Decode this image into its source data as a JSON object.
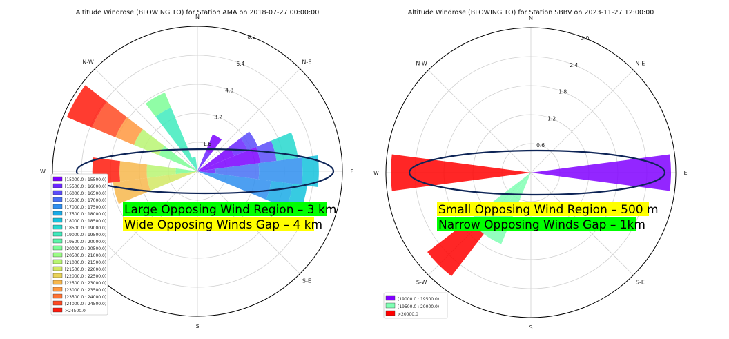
{
  "chart_data": [
    {
      "type": "windrose",
      "title": "Altitude Windrose (BLOWING TO) for Station AMA on 2018-07-27 00:00:00",
      "direction_labels": [
        "N",
        "N-E",
        "E",
        "S-E",
        "S",
        "S-W",
        "W",
        "N-W"
      ],
      "rmax": 8.0,
      "radial_ticks": [
        "1.6",
        "3.2",
        "4.8",
        "6.4",
        "8.0"
      ],
      "radial_tick_values": [
        1.6,
        3.2,
        4.8,
        6.4,
        8.0
      ],
      "legend_entries": [
        {
          "label": "[15000.0 : 15500.0)",
          "color": "#7a00ff"
        },
        {
          "label": "[15500.0 : 16000.0)",
          "color": "#6a26ff"
        },
        {
          "label": "[16000.0 : 16500.0)",
          "color": "#5a4cfa"
        },
        {
          "label": "[16500.0 : 17000.0)",
          "color": "#4670f5"
        },
        {
          "label": "[17000.0 : 17500.0)",
          "color": "#2e8eef"
        },
        {
          "label": "[17500.0 : 18000.0)",
          "color": "#1aaae6"
        },
        {
          "label": "[18000.0 : 18500.0)",
          "color": "#14c2dc"
        },
        {
          "label": "[18500.0 : 19000.0)",
          "color": "#26d8ce"
        },
        {
          "label": "[19000.0 : 19500.0)",
          "color": "#40ebbd"
        },
        {
          "label": "[19500.0 : 20000.0)",
          "color": "#5cf6ab"
        },
        {
          "label": "[20000.0 : 20500.0)",
          "color": "#7cfd97"
        },
        {
          "label": "[20500.0 : 21000.0)",
          "color": "#9afc84"
        },
        {
          "label": "[21000.0 : 21500.0)",
          "color": "#b8f572"
        },
        {
          "label": "[21500.0 : 22000.0)",
          "color": "#d2e764"
        },
        {
          "label": "[22000.0 : 22500.0)",
          "color": "#e8d258"
        },
        {
          "label": "[22500.0 : 23000.0)",
          "color": "#f7b74c"
        },
        {
          "label": "[23000.0 : 23500.0)",
          "color": "#ff9840"
        },
        {
          "label": "[23500.0 : 24000.0)",
          "color": "#ff7232"
        },
        {
          "label": "[24000.0 : 24500.0)",
          "color": "#ff4a22"
        },
        {
          "label": ">24500.0",
          "color": "#ff1a0c"
        }
      ],
      "sectors": [
        {
          "direction_deg": 30,
          "stack": [
            {
              "value": 1.2,
              "color": "#6a26ff"
            },
            {
              "value": 1.0,
              "color": "#7a00ff"
            }
          ]
        },
        {
          "direction_deg": 60,
          "stack": [
            {
              "value": 2.2,
              "color": "#7a00ff"
            },
            {
              "value": 0.8,
              "color": "#6a26ff"
            },
            {
              "value": 0.6,
              "color": "#5a4cfa"
            }
          ]
        },
        {
          "direction_deg": 75,
          "stack": [
            {
              "value": 3.5,
              "color": "#7a00ff"
            },
            {
              "value": 0.9,
              "color": "#5a4cfa"
            },
            {
              "value": 1.2,
              "color": "#26d8ce"
            }
          ]
        },
        {
          "direction_deg": 90,
          "stack": [
            {
              "value": 1.0,
              "color": "#6a26ff"
            },
            {
              "value": 2.4,
              "color": "#4670f5"
            },
            {
              "value": 2.4,
              "color": "#2e8eef"
            },
            {
              "value": 0.9,
              "color": "#14c2dc"
            }
          ]
        },
        {
          "direction_deg": 105,
          "stack": [
            {
              "value": 4.1,
              "color": "#2e8eef"
            },
            {
              "value": 1.2,
              "color": "#1aaae6"
            },
            {
              "value": 0.8,
              "color": "#14c2dc"
            }
          ]
        },
        {
          "direction_deg": 255,
          "stack": [
            {
              "value": 2.8,
              "color": "#d2e764"
            },
            {
              "value": 1.9,
              "color": "#f7b74c"
            }
          ]
        },
        {
          "direction_deg": 270,
          "stack": [
            {
              "value": 1.2,
              "color": "#7cfd97"
            },
            {
              "value": 1.6,
              "color": "#b8f572"
            },
            {
              "value": 1.5,
              "color": "#f7b74c"
            },
            {
              "value": 1.5,
              "color": "#ff1a0c"
            }
          ]
        },
        {
          "direction_deg": 300,
          "stack": [
            {
              "value": 2.3,
              "color": "#7cfd97"
            },
            {
              "value": 1.5,
              "color": "#b8f572"
            },
            {
              "value": 1.1,
              "color": "#ff9840"
            },
            {
              "value": 1.4,
              "color": "#ff4a22"
            },
            {
              "value": 1.5,
              "color": "#ff1a0c"
            }
          ]
        },
        {
          "direction_deg": 330,
          "stack": [
            {
              "value": 3.8,
              "color": "#40ebbd"
            },
            {
              "value": 0.9,
              "color": "#7cfd97"
            }
          ]
        },
        {
          "direction_deg": 345,
          "stack": [
            {
              "value": 0.8,
              "color": "#40ebbd"
            }
          ]
        }
      ]
    },
    {
      "type": "windrose",
      "title": "Altitude Windrose (BLOWING TO) for Station SBBV on 2023-11-27 12:00:00",
      "direction_labels": [
        "N",
        "N-E",
        "E",
        "S-E",
        "S",
        "S-W",
        "W",
        "N-W"
      ],
      "rmax": 3.0,
      "radial_ticks": [
        "0.6",
        "1.2",
        "1.8",
        "2.4",
        "3.0"
      ],
      "radial_tick_values": [
        0.6,
        1.2,
        1.8,
        2.4,
        3.0
      ],
      "legend_entries": [
        {
          "label": "[19000.0 : 19500.0)",
          "color": "#8000ff"
        },
        {
          "label": "[19500.0 : 20000.0)",
          "color": "#80ffb4"
        },
        {
          "label": ">20000.0",
          "color": "#ff0000"
        }
      ],
      "sectors": [
        {
          "direction_deg": 90,
          "stack": [
            {
              "value": 2.9,
              "color": "#8000ff"
            }
          ]
        },
        {
          "direction_deg": 270,
          "stack": [
            {
              "value": 2.9,
              "color": "#ff0000"
            }
          ]
        },
        {
          "direction_deg": 210,
          "stack": [
            {
              "value": 1.6,
              "color": "#80ffb4"
            }
          ]
        },
        {
          "direction_deg": 225,
          "stack": [
            {
              "value": 1.6,
              "color": "#80ffb4"
            },
            {
              "value": 1.1,
              "color": "#ff0000"
            }
          ]
        }
      ]
    }
  ],
  "annotations": [
    {
      "line1": "Large Opposing Wind Region – 3 km",
      "line2": "Wide Opposing Winds Gap – 4 km",
      "line1_bg": "#00ff00",
      "line2_bg": "#ffff00"
    },
    {
      "line1": "Small Opposing Wind Region – 500 m",
      "line2": "Narrow Opposing Winds Gap – 1km",
      "line1_bg": "#ffff00",
      "line2_bg": "#00ff00"
    }
  ],
  "highlight_ellipse_color": "#0d2456"
}
